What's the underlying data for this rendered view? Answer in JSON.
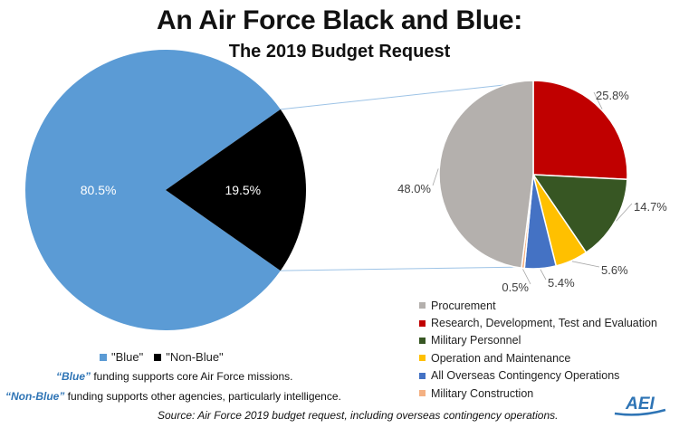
{
  "chart_data": [
    {
      "type": "pie",
      "title": "An Air Force Black and Blue:",
      "subtitle": "The 2019 Budget Request",
      "categories": [
        "\"Blue\"",
        "\"Non-Blue\""
      ],
      "values": [
        80.5,
        19.5
      ],
      "labels": [
        "80.5%",
        "19.5%"
      ],
      "colors": [
        "#5b9bd5",
        "#000000"
      ],
      "legend_position": "bottom"
    },
    {
      "type": "pie",
      "categories": [
        "Procurement",
        "Research, Development, Test and Evaluation",
        "Military Personnel",
        "Operation and Maintenance",
        "All Overseas Contingency Operations",
        "Military Construction"
      ],
      "values": [
        48.0,
        25.8,
        14.7,
        5.6,
        5.4,
        0.5
      ],
      "labels": [
        "48.0%",
        "25.8%",
        "14.7%",
        "5.6%",
        "5.4%",
        "0.5%"
      ],
      "colors": [
        "#b4b0ad",
        "#c00000",
        "#375623",
        "#ffc000",
        "#4472c4",
        "#f4b183"
      ],
      "legend_position": "bottom-right"
    }
  ],
  "notes": {
    "blue_kw": "“Blue”",
    "blue_text": " funding supports core Air Force missions.",
    "nonblue_kw": "“Non-Blue”",
    "nonblue_text": " funding supports other agencies, particularly intelligence."
  },
  "source": "Source: Air Force 2019 budget request, including overseas contingency operations.",
  "logo": {
    "text": "AEI",
    "icon": "aei-logo-icon",
    "color": "#2e74b5"
  }
}
